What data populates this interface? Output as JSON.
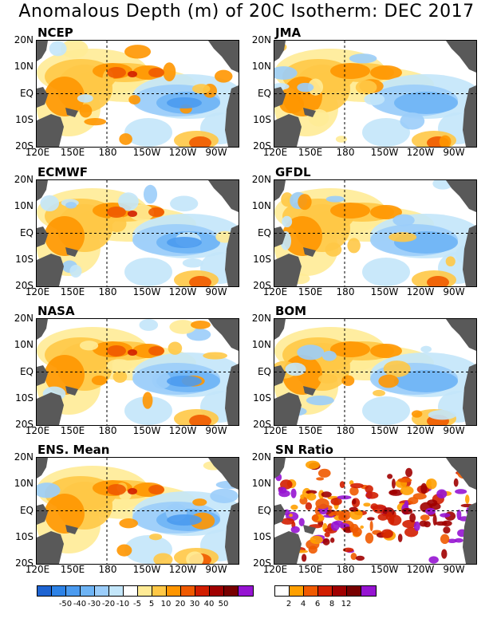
{
  "title": "Anomalous Depth (m) of 20C Isotherm: DEC 2017",
  "panels": [
    {
      "name": "NCEP",
      "kind": "anomaly"
    },
    {
      "name": "JMA",
      "kind": "anomaly"
    },
    {
      "name": "ECMWF",
      "kind": "anomaly"
    },
    {
      "name": "GFDL",
      "kind": "anomaly"
    },
    {
      "name": "NASA",
      "kind": "anomaly"
    },
    {
      "name": "BOM",
      "kind": "anomaly"
    },
    {
      "name": "ENS. Mean",
      "kind": "anomaly"
    },
    {
      "name": "SN Ratio",
      "kind": "ratio"
    }
  ],
  "lat_labels": [
    "20N",
    "10N",
    "EQ",
    "10S",
    "20S"
  ],
  "lon_labels": [
    "120E",
    "150E",
    "180",
    "150W",
    "120W",
    "90W"
  ],
  "colorbar_anomaly": {
    "colors": [
      "#1e64d2",
      "#2d82e6",
      "#4b9bf0",
      "#6eb4f5",
      "#9bcdfa",
      "#c3e6fa",
      "#ffffff",
      "#ffeb96",
      "#ffc846",
      "#ff9600",
      "#f05a00",
      "#d21e00",
      "#a00000",
      "#780000",
      "#9614d2"
    ],
    "labels": [
      "-50",
      "-40",
      "-30",
      "-20",
      "-10",
      "-5",
      "5",
      "10",
      "20",
      "30",
      "40",
      "50"
    ]
  },
  "colorbar_ratio": {
    "colors": [
      "#ffffff",
      "#ffa000",
      "#f05a00",
      "#d21e00",
      "#a00000",
      "#780000",
      "#9614d2"
    ],
    "labels": [
      "2",
      "4",
      "6",
      "8",
      "12"
    ]
  },
  "land_color": "#595959"
}
